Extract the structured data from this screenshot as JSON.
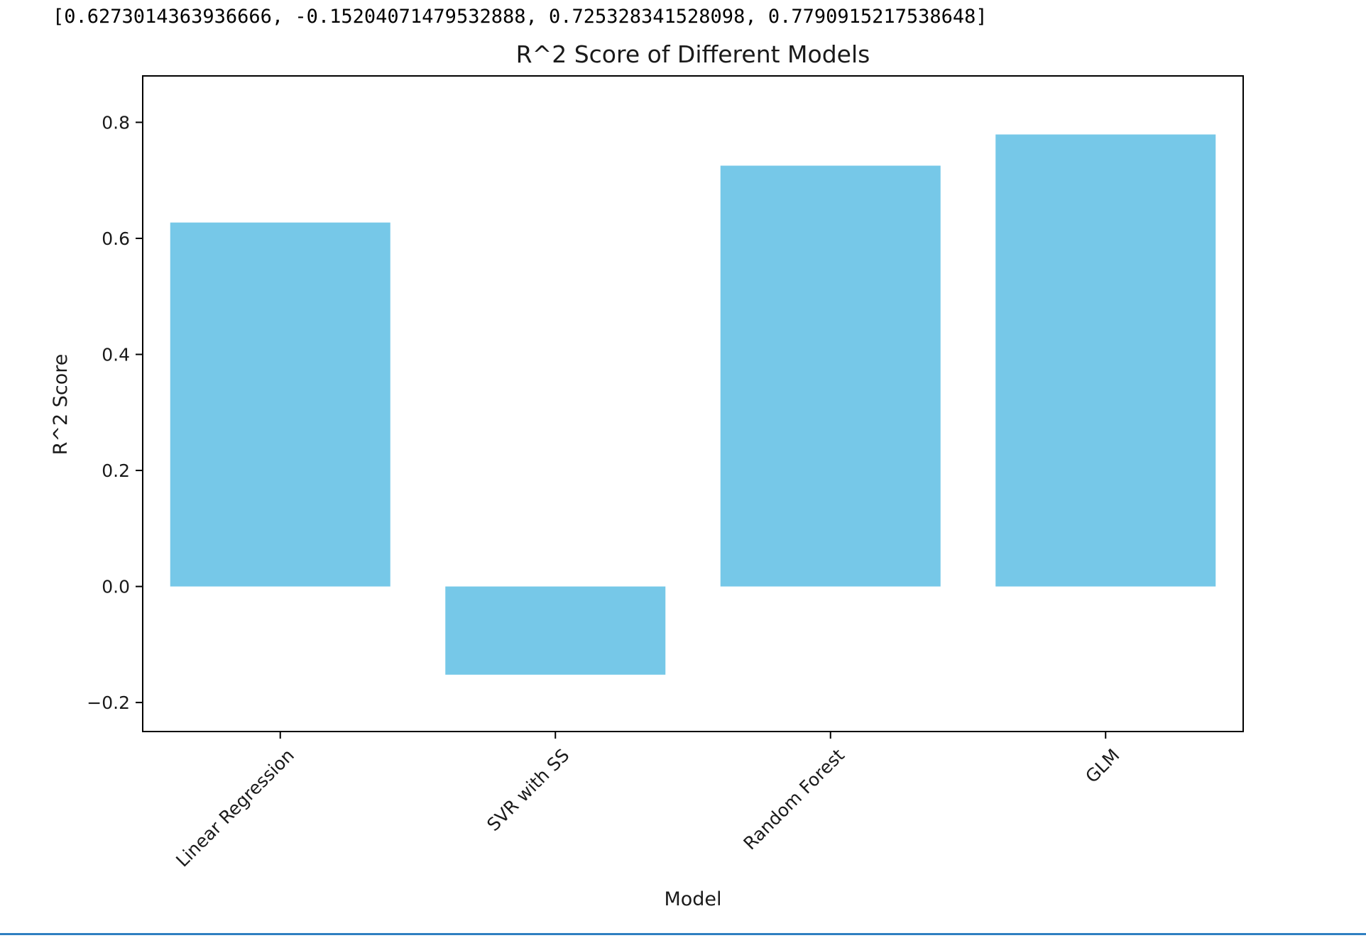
{
  "output": {
    "printed_list": "[0.6273014363936666, -0.15204071479532888, 0.725328341528098, 0.7790915217538648]"
  },
  "colors": {
    "bar": "#76c8e8",
    "axis": "#000000",
    "text": "#1a1a1a",
    "accent_rule": "#2f7fc1"
  },
  "chart_data": {
    "type": "bar",
    "title": "R^2 Score of Different Models",
    "xlabel": "Model",
    "ylabel": "R^2 Score",
    "categories": [
      "Linear Regression",
      "SVR with SS",
      "Random Forest",
      "GLM"
    ],
    "values": [
      0.6273014363936666,
      -0.15204071479532888,
      0.725328341528098,
      0.7790915217538648
    ],
    "ylim": [
      -0.25,
      0.88
    ],
    "yticks": [
      -0.2,
      0.0,
      0.2,
      0.4,
      0.6,
      0.8
    ],
    "ytick_labels": [
      "−0.2",
      "0.0",
      "0.2",
      "0.4",
      "0.6",
      "0.8"
    ],
    "grid": false,
    "legend": "none"
  }
}
